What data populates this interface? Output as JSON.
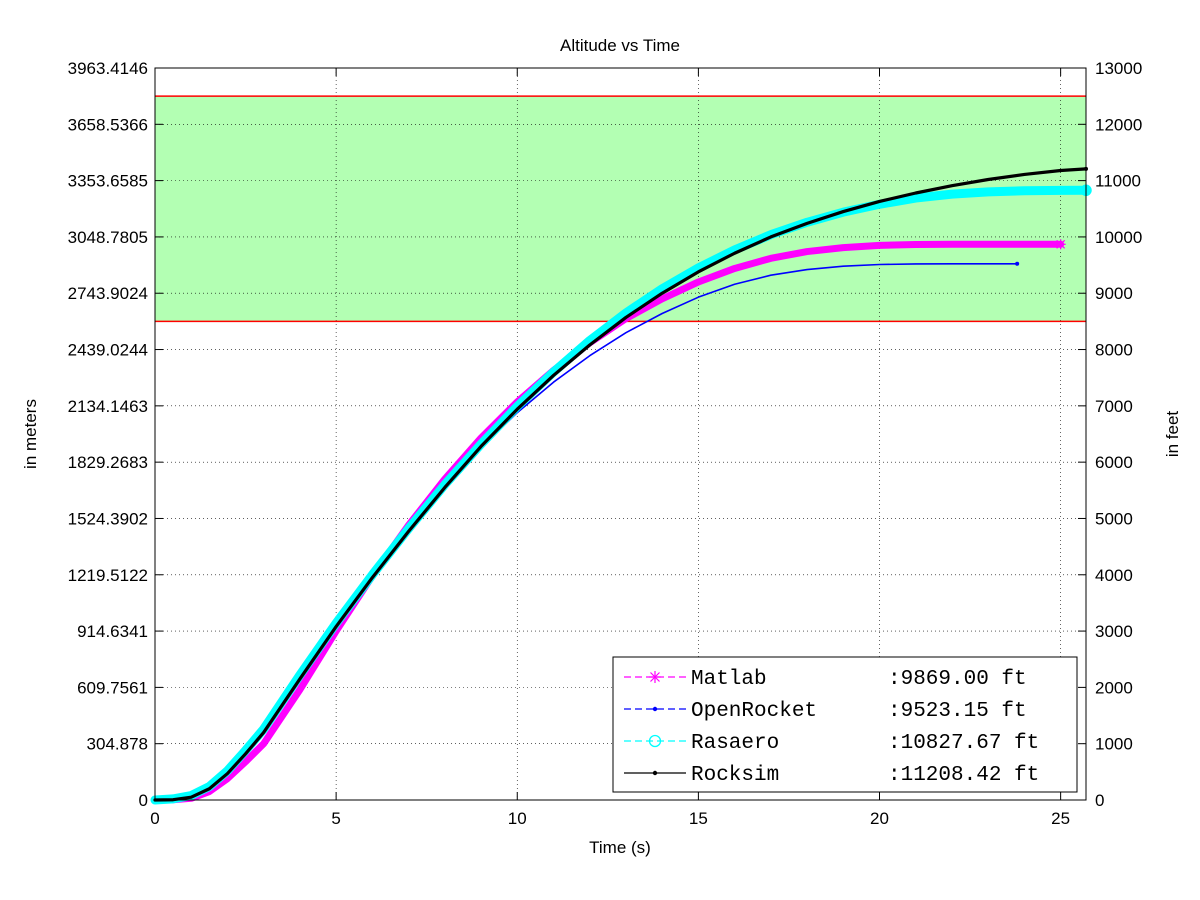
{
  "chart_data": {
    "type": "line",
    "title": "Altitude vs Time",
    "xlabel": "Time (s)",
    "ylabel_left": "in meters",
    "ylabel_right": "in feet",
    "xlim": [
      0,
      25.7
    ],
    "ylim_feet": [
      0,
      13000
    ],
    "grid": true,
    "x_ticks": [
      "0",
      "5",
      "10",
      "15",
      "20",
      "25"
    ],
    "x_tick_values": [
      0,
      5,
      10,
      15,
      20,
      25
    ],
    "y_left_ticks": [
      "0",
      "304.878",
      "609.7561",
      "914.6341",
      "1219.5122",
      "1524.3902",
      "1829.2683",
      "2134.1463",
      "2439.0244",
      "2743.9024",
      "3048.7805",
      "3353.6585",
      "3658.5366",
      "3963.4146"
    ],
    "y_right_ticks": [
      "0",
      "1000",
      "2000",
      "3000",
      "4000",
      "5000",
      "6000",
      "7000",
      "8000",
      "9000",
      "10000",
      "11000",
      "12000",
      "13000"
    ],
    "y_tick_values_feet": [
      0,
      1000,
      2000,
      3000,
      4000,
      5000,
      6000,
      7000,
      8000,
      9000,
      10000,
      11000,
      12000,
      13000
    ],
    "target_band_feet": [
      8500,
      12500
    ],
    "band_color": "#b3ffb3",
    "band_line_color": "#ff0000",
    "legend_position": "bottom-right",
    "series": [
      {
        "name": "Matlab",
        "value_label": ":9869.00 ft",
        "color": "#ff00ff",
        "x": [
          0,
          0.5,
          1,
          1.5,
          2,
          2.5,
          3,
          4,
          5,
          6,
          7,
          8,
          9,
          10,
          11,
          12,
          13,
          14,
          15,
          16,
          17,
          18,
          19,
          20,
          21,
          22,
          23,
          24,
          25
        ],
        "y": [
          0,
          5,
          30,
          150,
          380,
          680,
          1000,
          1960,
          3000,
          3980,
          4880,
          5700,
          6430,
          7070,
          7630,
          8120,
          8550,
          8900,
          9200,
          9440,
          9620,
          9740,
          9810,
          9850,
          9865,
          9869,
          9869,
          9869,
          9869
        ]
      },
      {
        "name": "OpenRocket",
        "value_label": ":9523.15 ft",
        "color": "#0000ff",
        "x": [
          0,
          0.5,
          1,
          1.5,
          2,
          2.5,
          3,
          4,
          5,
          6,
          7,
          8,
          9,
          10,
          11,
          12,
          13,
          14,
          15,
          16,
          17,
          18,
          19,
          20,
          21,
          22,
          23,
          23.8
        ],
        "y": [
          0,
          5,
          30,
          160,
          400,
          720,
          1060,
          1980,
          2990,
          3920,
          4780,
          5560,
          6260,
          6880,
          7420,
          7890,
          8300,
          8640,
          8930,
          9160,
          9320,
          9420,
          9480,
          9510,
          9520,
          9523,
          9523,
          9523
        ]
      },
      {
        "name": "Rasaero",
        "value_label": ":10827.67 ft",
        "color": "#00ffff",
        "x": [
          0,
          0.5,
          1,
          1.5,
          2,
          2.5,
          3,
          4,
          5,
          6,
          7,
          8,
          9,
          10,
          11,
          12,
          13,
          14,
          15,
          16,
          17,
          18,
          19,
          20,
          21,
          22,
          23,
          24,
          25,
          25.7
        ],
        "y": [
          0,
          20,
          80,
          240,
          520,
          880,
          1260,
          2220,
          3140,
          4000,
          4820,
          5600,
          6320,
          6990,
          7600,
          8160,
          8650,
          9080,
          9450,
          9770,
          10040,
          10260,
          10440,
          10580,
          10690,
          10760,
          10800,
          10820,
          10827,
          10828
        ]
      },
      {
        "name": "Rocksim",
        "value_label": ":11208.42 ft",
        "color": "#000000",
        "x": [
          0,
          0.5,
          1,
          1.5,
          2,
          2.5,
          3,
          4,
          5,
          6,
          7,
          8,
          9,
          10,
          11,
          12,
          13,
          14,
          15,
          16,
          17,
          18,
          19,
          20,
          21,
          22,
          23,
          24,
          25,
          25.7
        ],
        "y": [
          0,
          5,
          50,
          200,
          470,
          820,
          1200,
          2150,
          3080,
          3950,
          4770,
          5550,
          6280,
          6940,
          7540,
          8080,
          8570,
          9000,
          9380,
          9710,
          10000,
          10240,
          10450,
          10630,
          10780,
          10910,
          11020,
          11110,
          11180,
          11208
        ]
      }
    ]
  }
}
